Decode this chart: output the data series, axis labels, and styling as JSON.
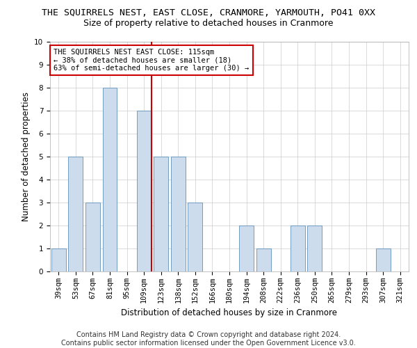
{
  "title": "THE SQUIRRELS NEST, EAST CLOSE, CRANMORE, YARMOUTH, PO41 0XX",
  "subtitle": "Size of property relative to detached houses in Cranmore",
  "xlabel": "Distribution of detached houses by size in Cranmore",
  "ylabel": "Number of detached properties",
  "categories": [
    "39sqm",
    "53sqm",
    "67sqm",
    "81sqm",
    "95sqm",
    "109sqm",
    "123sqm",
    "138sqm",
    "152sqm",
    "166sqm",
    "180sqm",
    "194sqm",
    "208sqm",
    "222sqm",
    "236sqm",
    "250sqm",
    "265sqm",
    "279sqm",
    "293sqm",
    "307sqm",
    "321sqm"
  ],
  "values": [
    1,
    5,
    3,
    8,
    0,
    7,
    5,
    5,
    3,
    0,
    0,
    2,
    1,
    0,
    2,
    2,
    0,
    0,
    0,
    1,
    0
  ],
  "bar_color": "#ccdcec",
  "bar_edge_color": "#6090b8",
  "highlight_index": 5,
  "highlight_line_color": "#cc0000",
  "ylim": [
    0,
    10
  ],
  "yticks": [
    0,
    1,
    2,
    3,
    4,
    5,
    6,
    7,
    8,
    9,
    10
  ],
  "annotation_text": "THE SQUIRRELS NEST EAST CLOSE: 115sqm\n← 38% of detached houses are smaller (18)\n63% of semi-detached houses are larger (30) →",
  "annotation_box_color": "#cc0000",
  "footer_line1": "Contains HM Land Registry data © Crown copyright and database right 2024.",
  "footer_line2": "Contains public sector information licensed under the Open Government Licence v3.0.",
  "bg_color": "#ffffff",
  "grid_color": "#cccccc",
  "title_fontsize": 9.5,
  "subtitle_fontsize": 9,
  "axis_label_fontsize": 8.5,
  "tick_fontsize": 7.5,
  "annotation_fontsize": 7.5,
  "footer_fontsize": 7.0
}
